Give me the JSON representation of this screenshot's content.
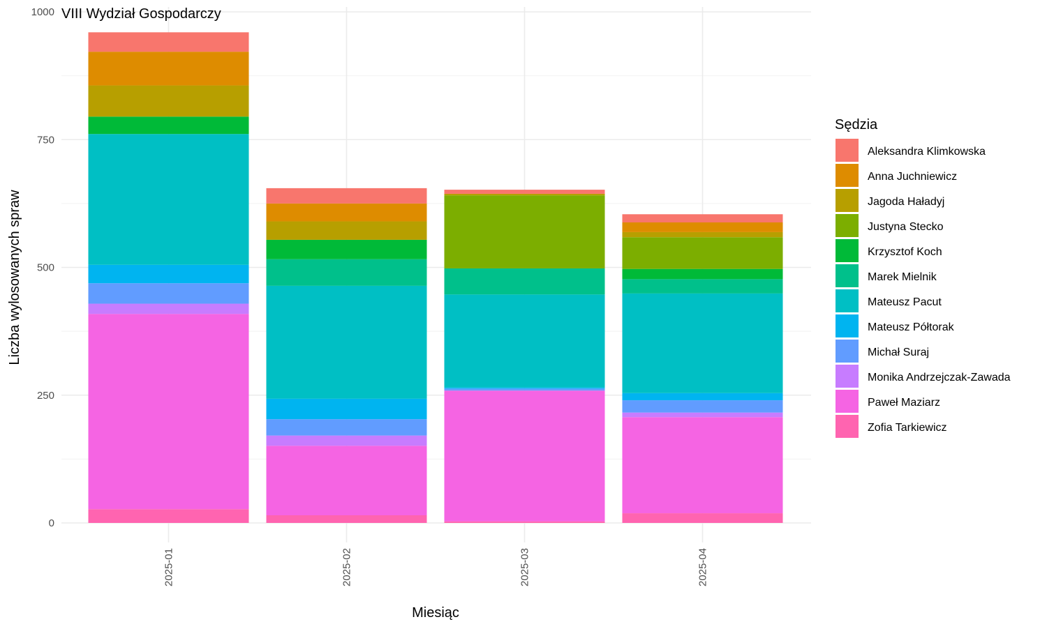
{
  "chart_data": {
    "type": "bar",
    "stacked": true,
    "title": "VIII Wydział Gospodarczy",
    "xlabel": "Miesiąc",
    "ylabel": "Liczba wylosowanych spraw",
    "ylim": [
      0,
      1000
    ],
    "yticks": [
      0,
      250,
      500,
      750,
      1000
    ],
    "grid": true,
    "legend_title": "Sędzia",
    "legend_position": "right",
    "categories": [
      "2025-01",
      "2025-02",
      "2025-03",
      "2025-04"
    ],
    "series": [
      {
        "name": "Aleksandra Klimkowska",
        "color": "#F8766D",
        "values": [
          38,
          30,
          8,
          16
        ]
      },
      {
        "name": "Anna Juchniewicz",
        "color": "#DE8C00",
        "values": [
          66,
          35,
          0,
          19
        ]
      },
      {
        "name": "Jagoda Haładyj",
        "color": "#B79F00",
        "values": [
          61,
          36,
          3,
          10
        ]
      },
      {
        "name": "Justyna Stecko",
        "color": "#7CAE00",
        "values": [
          0,
          0,
          143,
          62
        ]
      },
      {
        "name": "Krzysztof Koch",
        "color": "#00BA38",
        "values": [
          34,
          38,
          0,
          20
        ]
      },
      {
        "name": "Marek Mielnik",
        "color": "#00C08B",
        "values": [
          0,
          52,
          51,
          28
        ]
      },
      {
        "name": "Mateusz Pacut",
        "color": "#00BFC4",
        "values": [
          256,
          221,
          182,
          195
        ]
      },
      {
        "name": "Mateusz Półtorak",
        "color": "#00B4F0",
        "values": [
          36,
          40,
          2,
          14
        ]
      },
      {
        "name": "Michał Suraj",
        "color": "#619CFF",
        "values": [
          40,
          32,
          4,
          24
        ]
      },
      {
        "name": "Monika Andrzejczak-Zawada",
        "color": "#C77CFF",
        "values": [
          20,
          20,
          0,
          9
        ]
      },
      {
        "name": "Paweł Maziarz",
        "color": "#F564E3",
        "values": [
          382,
          136,
          256,
          188
        ]
      },
      {
        "name": "Zofia Tarkiewicz",
        "color": "#FF64B0",
        "values": [
          27,
          15,
          3,
          19
        ]
      }
    ]
  }
}
